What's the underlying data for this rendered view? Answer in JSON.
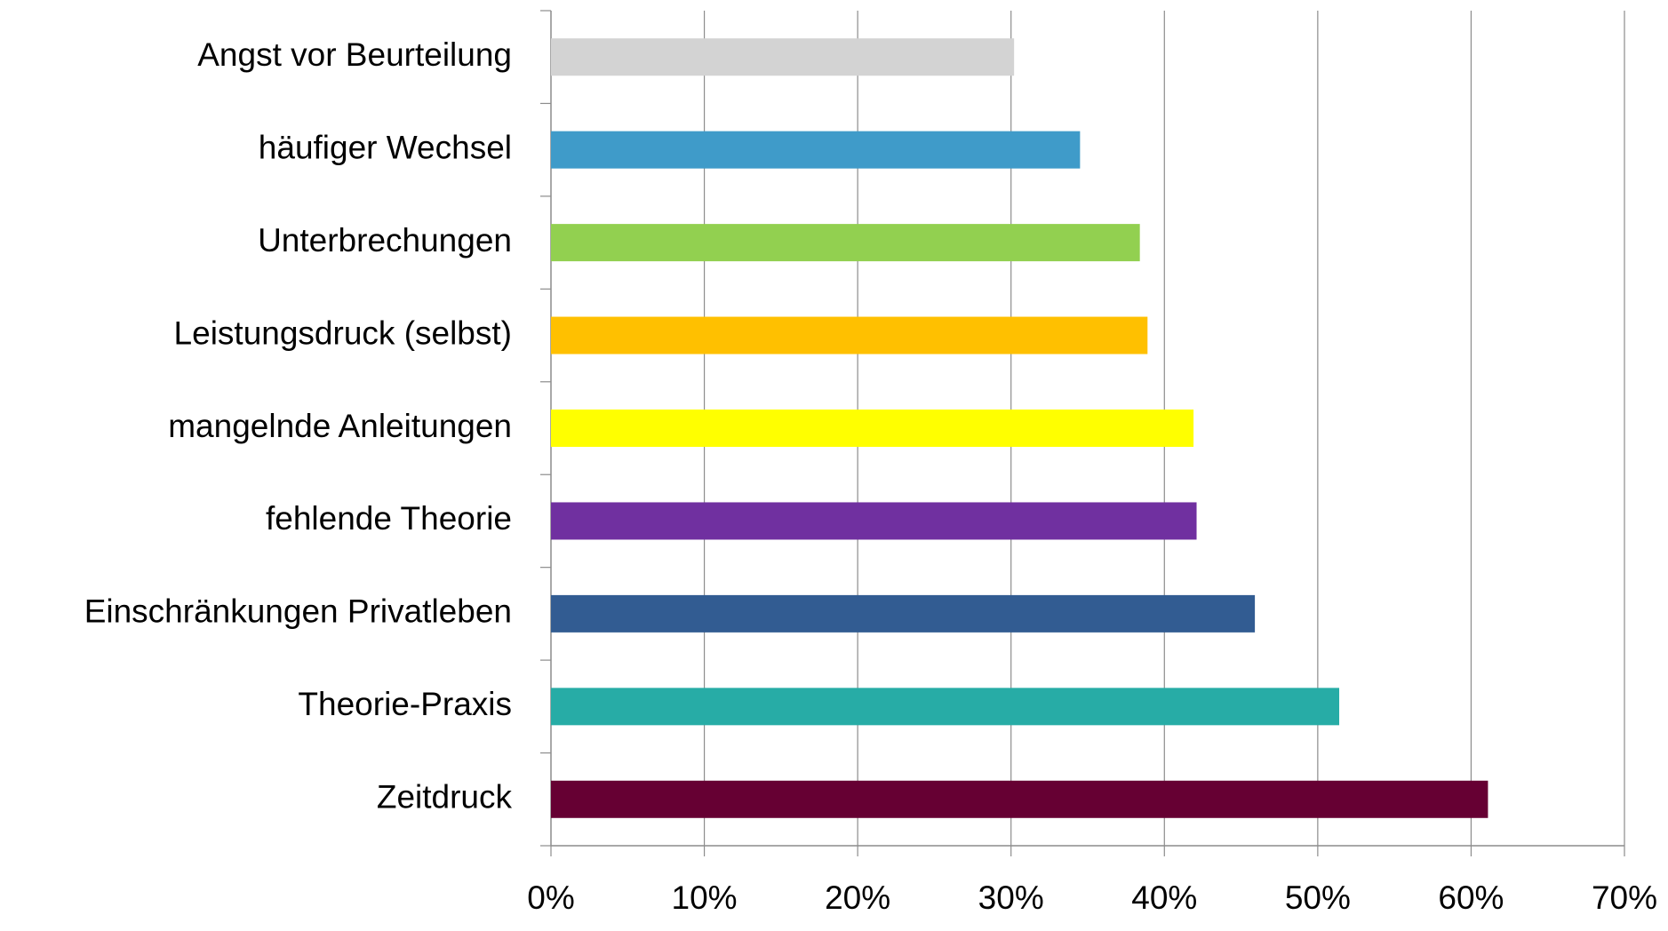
{
  "chart_data": {
    "type": "bar",
    "orientation": "horizontal",
    "categories": [
      "Angst vor Beurteilung",
      "häufiger Wechsel",
      "Unterbrechungen",
      "Leistungsdruck (selbst)",
      "mangelnde Anleitungen",
      "fehlende Theorie",
      "Einschränkungen Privatleben",
      "Theorie-Praxis",
      "Zeitdruck"
    ],
    "values": [
      30.2,
      34.5,
      38.4,
      38.9,
      41.9,
      42.1,
      45.9,
      51.4,
      61.1
    ],
    "colors": [
      "#d3d3d3",
      "#3f9bc9",
      "#92d050",
      "#ffc000",
      "#ffff00",
      "#7030a0",
      "#325c92",
      "#27aca6",
      "#660033"
    ],
    "xlim": [
      0,
      70
    ],
    "xticks": [
      {
        "value": 0,
        "label": "0%"
      },
      {
        "value": 10,
        "label": "10%"
      },
      {
        "value": 20,
        "label": "20%"
      },
      {
        "value": 30,
        "label": "30%"
      },
      {
        "value": 40,
        "label": "40%"
      },
      {
        "value": 50,
        "label": "50%"
      },
      {
        "value": 60,
        "label": "60%"
      },
      {
        "value": 70,
        "label": "70%"
      }
    ],
    "grid": true
  }
}
